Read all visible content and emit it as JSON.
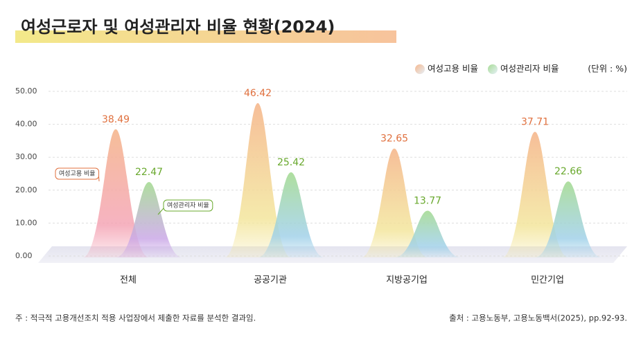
{
  "chart_data": {
    "type": "peak",
    "title": "여성근로자 및 여성관리자 비율 현황(2024)",
    "unit": "(단위 : %)",
    "note": "주 :  적극적 고용개선조치 적용 사업장에서 제출한 자료를 분석한 결과임.",
    "source": "출처 : 고용노동부, 고용노동백서(2025), pp.92-93.",
    "categories": [
      "전체",
      "공공기관",
      "지방공기업",
      "민간기업"
    ],
    "series": [
      {
        "name": "여성고용 비율",
        "color": "#f5b88f",
        "label_color": "#e0703e",
        "values": [
          38.49,
          46.42,
          32.65,
          37.71
        ]
      },
      {
        "name": "여성관리자 비율",
        "color": "#a8dc96",
        "label_color": "#68a82c",
        "values": [
          22.47,
          25.42,
          13.77,
          22.66
        ]
      }
    ],
    "ylim": [
      0,
      50
    ],
    "yticks": [
      {
        "value": 0,
        "label": "0.00"
      },
      {
        "value": 10,
        "label": "10.00"
      },
      {
        "value": 20,
        "label": "20.00"
      },
      {
        "value": 30,
        "label": "30.00"
      },
      {
        "value": 40,
        "label": "40.00"
      },
      {
        "value": 50,
        "label": "50.00"
      }
    ],
    "grid": true
  }
}
